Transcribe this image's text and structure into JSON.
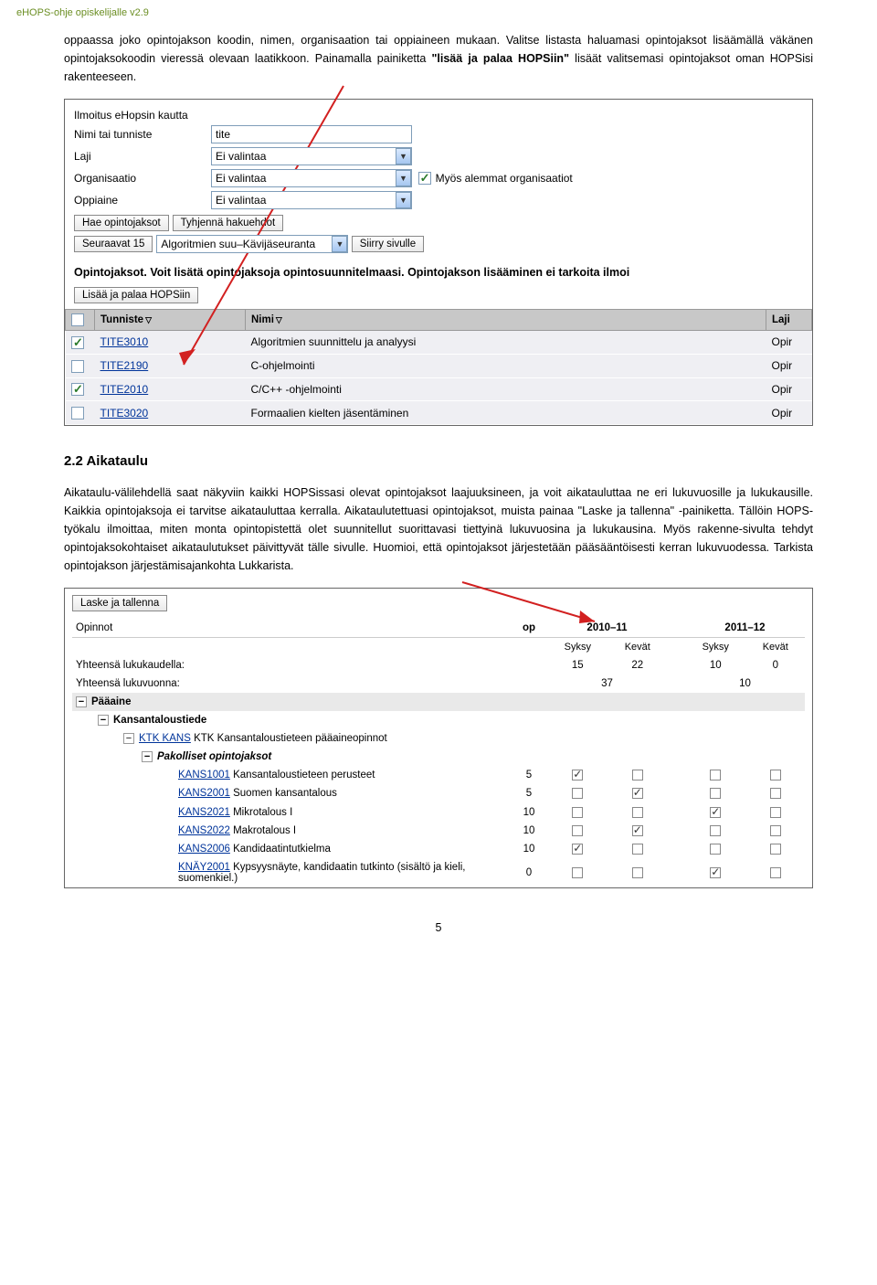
{
  "page": {
    "header": "eHOPS-ohje opiskelijalle v2.9",
    "intro": "oppaassa joko opintojakson koodin, nimen, organisaation tai oppiaineen mukaan. Valitse listasta haluamasi opintojaksot lisäämällä väkänen opintojaksokoodin vieressä olevaan laatikkoon. Painamalla painiketta ",
    "intro_bold": "\"lisää ja palaa HOPSiin\"",
    "intro_tail": " lisäät valitsemasi opintojaksot oman HOPSisi rakenteeseen.",
    "page_number": "5"
  },
  "form": {
    "title": "Ilmoitus eHopsin kautta",
    "l_name": "Nimi tai tunniste",
    "v_name": "tite",
    "l_laji": "Laji",
    "l_org": "Organisaatio",
    "l_opp": "Oppiaine",
    "no_sel": "Ei valintaa",
    "also_lower": "Myös alemmat organisaatiot",
    "btn_hae": "Hae opintojaksot",
    "btn_tyhj": "Tyhjennä hakuehdot",
    "btn_seur": "Seuraavat 15",
    "range_sel": "Algoritmien suu–Kävijäseuranta",
    "btn_siirry": "Siirry sivulle",
    "section_heading": "Opintojaksot. Voit lisätä opintojaksoja opintosuunnitelmaasi. Opintojakson lisääminen ei tarkoita ilmoi",
    "btn_lisaa": "Lisää ja palaa HOPSiin"
  },
  "table1": {
    "cols": {
      "tunniste": "Tunniste",
      "nimi": "Nimi",
      "laji": "Laji"
    },
    "rows": [
      {
        "checked": true,
        "code": "TITE3010",
        "name": "Algoritmien suunnittelu ja analyysi",
        "laji": "Opir"
      },
      {
        "checked": false,
        "code": "TITE2190",
        "name": "C-ohjelmointi",
        "laji": "Opir"
      },
      {
        "checked": true,
        "code": "TITE2010",
        "name": "C/C++ -ohjelmointi",
        "laji": "Opir"
      },
      {
        "checked": false,
        "code": "TITE3020",
        "name": "Formaalien kielten jäsentäminen",
        "laji": "Opir"
      }
    ]
  },
  "h2": "2.2 Aikataulu",
  "para2": "Aikataulu-välilehdellä saat näkyviin kaikki HOPSissasi olevat opintojaksot laajuuksineen, ja voit aikatauluttaa ne eri lukuvuosille ja lukukausille. Kaikkia opintojaksoja ei tarvitse aikatauluttaa kerralla. Aikataulutettuasi opintojaksot, muista painaa \"Laske ja tallenna\" -painiketta. Tällöin HOPS-työkalu ilmoittaa, miten monta opintopistettä olet suunnitellut suorittavasi tiettyinä lukuvuosina ja lukukausina. Myös rakenne-sivulta tehdyt opintojaksokohtaiset aikataulutukset päivittyvät tälle sivulle. Huomioi, että opintojaksot järjestetään pääsääntöisesti kerran lukuvuodessa. Tarkista opintojakson järjestämisajankohta Lukkarista.",
  "table2": {
    "btn_laske": "Laske ja tallenna",
    "col_op": "op",
    "y1": "2010–11",
    "y2": "2011–12",
    "s1": "Syksy",
    "s2": "Kevät",
    "sum_lk": "Yhteensä lukukaudella:",
    "sum_lv": "Yhteensä lukuvuonna:",
    "opinnot": "Opinnot",
    "vals_lk": [
      "15",
      "22",
      "10",
      "0"
    ],
    "vals_lv": [
      "37",
      "10"
    ],
    "paa": "Pääaine",
    "kans": "Kansantaloustiede",
    "ktk_code": "KTK KANS",
    "ktk_name": "KTK Kansantaloustieteen pääaineopinnot",
    "pak": "Pakolliset opintojaksot",
    "courses": [
      {
        "code": "KANS1001",
        "name": "Kansantaloustieteen perusteet",
        "op": "5",
        "chk": [
          true,
          false,
          false,
          false
        ]
      },
      {
        "code": "KANS2001",
        "name": "Suomen kansantalous",
        "op": "5",
        "chk": [
          false,
          true,
          false,
          false
        ]
      },
      {
        "code": "KANS2021",
        "name": "Mikrotalous I",
        "op": "10",
        "chk": [
          false,
          false,
          true,
          false
        ]
      },
      {
        "code": "KANS2022",
        "name": "Makrotalous I",
        "op": "10",
        "chk": [
          false,
          true,
          false,
          false
        ]
      },
      {
        "code": "KANS2006",
        "name": "Kandidaatintutkielma",
        "op": "10",
        "chk": [
          true,
          false,
          false,
          false
        ]
      },
      {
        "code": "KNÄY2001",
        "name": "Kypsyysnäyte, kandidaatin tutkinto (sisältö ja kieli, suomenkiel.)",
        "op": "0",
        "chk": [
          false,
          false,
          true,
          false
        ]
      }
    ]
  },
  "colors": {
    "header": "#6b8e23",
    "link": "#00349a",
    "th_bg": "#c8c8c8",
    "td_bg": "#efeff3",
    "arrow": "#d22020"
  }
}
